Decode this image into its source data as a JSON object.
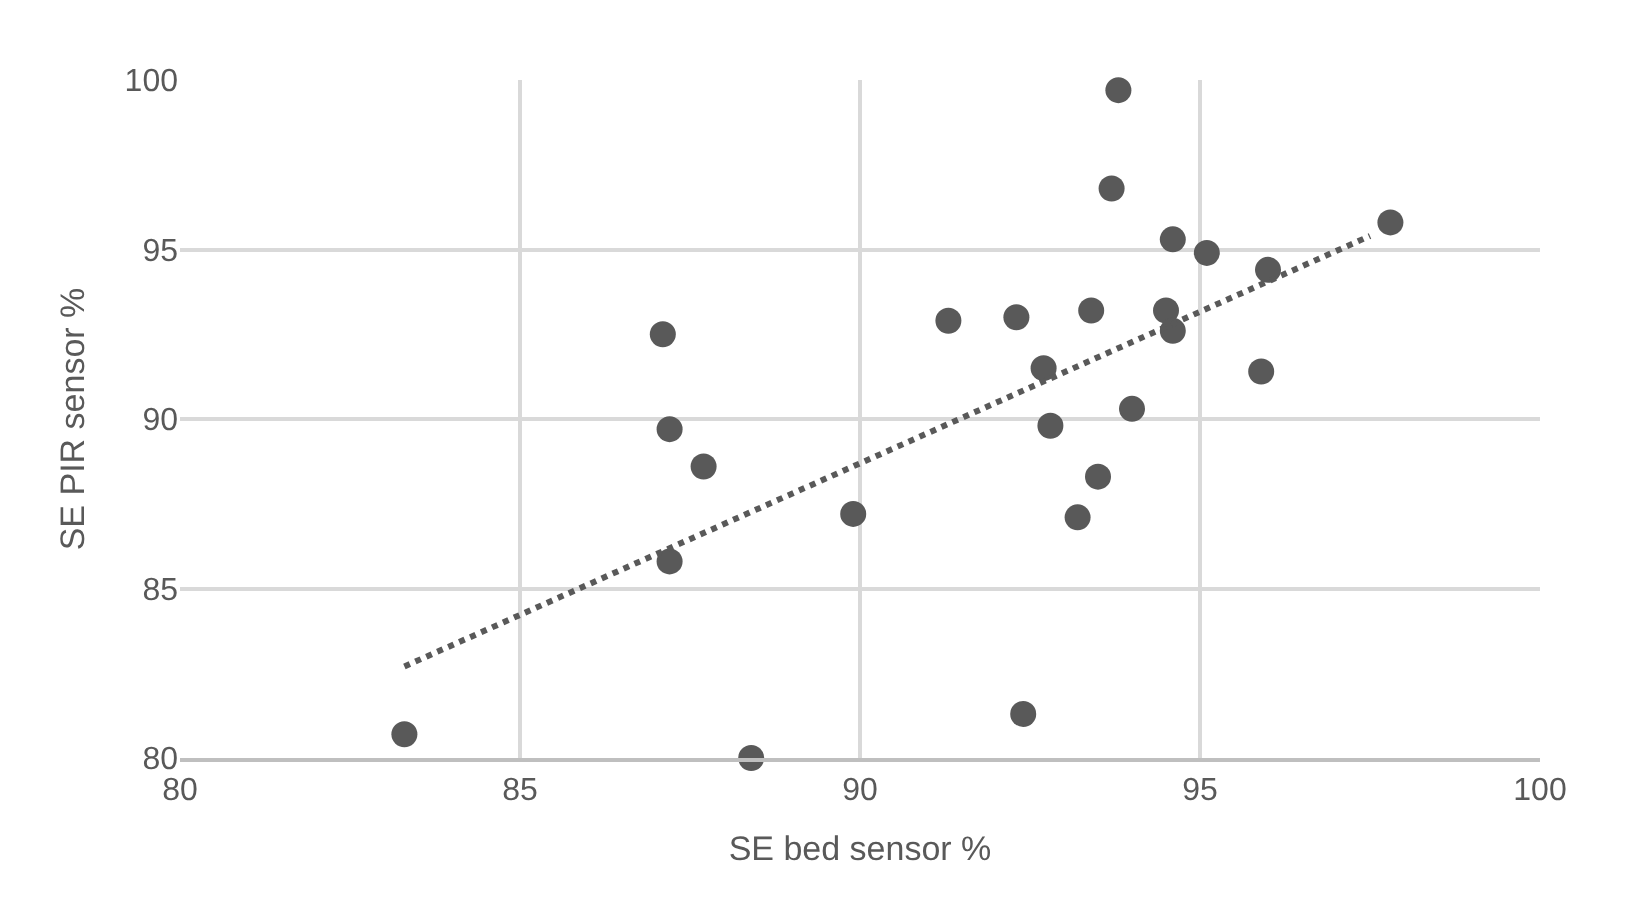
{
  "chart_data": {
    "type": "scatter",
    "xlabel": "SE bed sensor %",
    "ylabel": "SE PIR sensor %",
    "xlim": [
      80,
      100
    ],
    "ylim": [
      80,
      100
    ],
    "xticks": [
      80,
      85,
      90,
      95,
      100
    ],
    "yticks": [
      80,
      85,
      90,
      95,
      100
    ],
    "grid": true,
    "marker": "circle",
    "series": [
      {
        "color": "#595959",
        "x": [
          83.3,
          87.1,
          87.2,
          87.7,
          87.2,
          89.9,
          91.3,
          88.4,
          93.8,
          93.7,
          94.6,
          95.1,
          96.0,
          97.8,
          92.3,
          93.4,
          94.5,
          94.6,
          92.7,
          95.9,
          94.0,
          92.8,
          93.5,
          93.2,
          92.4
        ],
        "values": [
          80.7,
          92.5,
          89.7,
          88.6,
          85.8,
          87.2,
          92.9,
          80.0,
          99.7,
          96.8,
          95.3,
          94.9,
          94.4,
          95.8,
          93.0,
          93.2,
          93.2,
          92.6,
          91.5,
          91.4,
          90.3,
          89.8,
          88.3,
          87.1,
          81.3
        ]
      },
      {
        "type": "line",
        "color": "#595959",
        "line_style": "dotted",
        "marker": "none",
        "x": [
          83.3,
          97.5
        ],
        "values": [
          82.7,
          95.4
        ]
      }
    ]
  }
}
